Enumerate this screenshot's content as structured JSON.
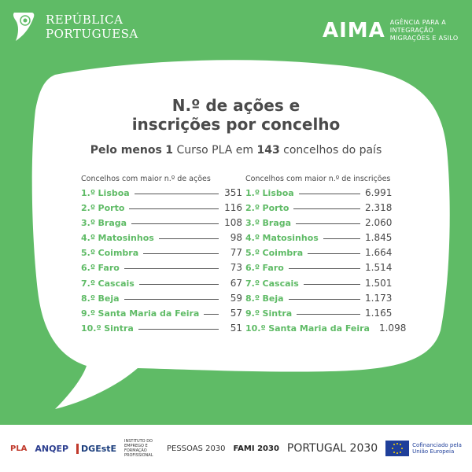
{
  "header": {
    "gov_line1": "REPÚBLICA",
    "gov_line2": "PORTUGUESA",
    "aima_logo": "AIMA",
    "agency_line1": "AGÊNCIA PARA A",
    "agency_line2": "INTEGRAÇÃO",
    "agency_line3": "MIGRAÇÕES E ASILO"
  },
  "title_line1": "N.º de ações e",
  "title_line2": "inscrições por concelho",
  "subtitle": {
    "prefix": "Pelo menos",
    "count_courses": "1",
    "middle": "Curso PLA em",
    "count_municipalities": "143",
    "suffix": "concelhos do país"
  },
  "actions": {
    "header": "Concelhos com maior n.º de ações",
    "rows": [
      {
        "rank": "1.º",
        "name": "Lisboa",
        "value": "351"
      },
      {
        "rank": "2.º",
        "name": "Porto",
        "value": "116"
      },
      {
        "rank": "3.º",
        "name": "Braga",
        "value": "108"
      },
      {
        "rank": "4.º",
        "name": "Matosinhos",
        "value": "98"
      },
      {
        "rank": "5.º",
        "name": "Coimbra",
        "value": "77"
      },
      {
        "rank": "6.º",
        "name": "Faro",
        "value": "73"
      },
      {
        "rank": "7.º",
        "name": "Cascais",
        "value": "67"
      },
      {
        "rank": "8.º",
        "name": "Beja",
        "value": "59"
      },
      {
        "rank": "9.º",
        "name": "Santa Maria da Feira",
        "value": "57"
      },
      {
        "rank": "10.º",
        "name": "Sintra",
        "value": "51"
      }
    ]
  },
  "registrations": {
    "header": "Concelhos com maior n.º de inscrições",
    "rows": [
      {
        "rank": "1.º",
        "name": "Lisboa",
        "value": "6.991"
      },
      {
        "rank": "2.º",
        "name": "Porto",
        "value": "2.318"
      },
      {
        "rank": "3.º",
        "name": "Braga",
        "value": "2.060"
      },
      {
        "rank": "4.º",
        "name": "Matosinhos",
        "value": "1.845"
      },
      {
        "rank": "5.º",
        "name": "Coimbra",
        "value": "1.664"
      },
      {
        "rank": "6.º",
        "name": "Faro",
        "value": "1.514"
      },
      {
        "rank": "7.º",
        "name": "Cascais",
        "value": "1.501"
      },
      {
        "rank": "8.º",
        "name": "Beja",
        "value": "1.173"
      },
      {
        "rank": "9.º",
        "name": "Sintra",
        "value": "1.165"
      },
      {
        "rank": "10.º",
        "name": "Santa Maria da Feira",
        "value": "1.098"
      }
    ]
  },
  "footer": {
    "pla": "PLA",
    "anqep": "ANQEP",
    "dgeste": "DGEstE",
    "iefp": "INSTITUTO DO EMPREGO E FORMAÇÃO PROFISSIONAL",
    "pessoas": "PESSOAS 2030",
    "fami": "FAMI 2030",
    "portugal2030": "PORTUGAL 2030",
    "eu_line1": "Cofinanciado pela",
    "eu_line2": "União Europeia"
  },
  "colors": {
    "background": "#5fbb66",
    "accent": "#5fbb66",
    "text": "#4a4a4a"
  }
}
